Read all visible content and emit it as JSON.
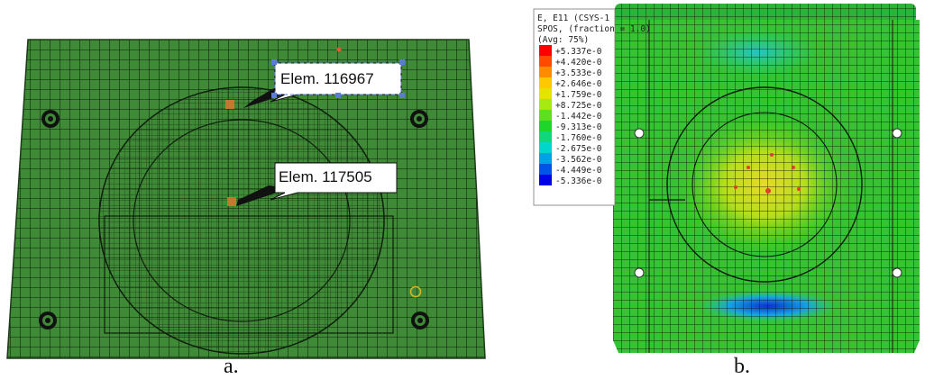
{
  "panel_a": {
    "caption": "a.",
    "mesh_color": "#3f8a36",
    "callouts": [
      {
        "label": "Elem. 116967"
      },
      {
        "label": "Elem. 117505"
      }
    ]
  },
  "panel_b": {
    "caption": "b.",
    "legend": {
      "title_lines": [
        "E, E11 (CSYS-1",
        "SPOS, (fraction = 1.0)",
        "(Avg: 75%)"
      ],
      "entries": [
        {
          "label": "+5.337e-0",
          "color": "#ff0000"
        },
        {
          "label": "+4.420e-0",
          "color": "#ff4a00"
        },
        {
          "label": "+3.533e-0",
          "color": "#ff8c00"
        },
        {
          "label": "+2.646e-0",
          "color": "#ffc800"
        },
        {
          "label": "+1.759e-0",
          "color": "#e4e400"
        },
        {
          "label": "+8.725e-0",
          "color": "#a6ea12"
        },
        {
          "label": "-1.442e-0",
          "color": "#5fe01e"
        },
        {
          "label": "-9.313e-0",
          "color": "#1ed62a"
        },
        {
          "label": "-1.760e-0",
          "color": "#11d77a"
        },
        {
          "label": "-2.675e-0",
          "color": "#00d7c8"
        },
        {
          "label": "-3.562e-0",
          "color": "#00a2e6"
        },
        {
          "label": "-4.449e-0",
          "color": "#0055e6"
        },
        {
          "label": "-5.336e-0",
          "color": "#0000e6"
        }
      ]
    }
  }
}
